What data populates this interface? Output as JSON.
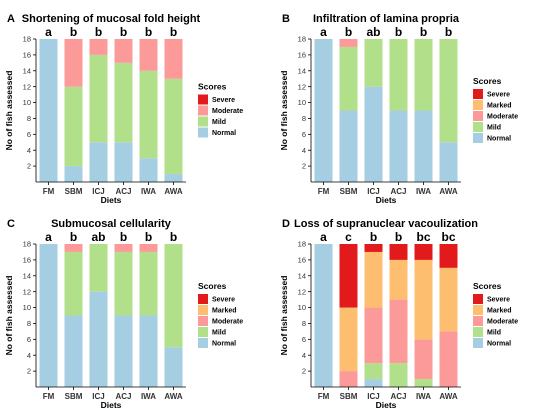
{
  "colors": {
    "Normal": "#a6cee3",
    "Mild": "#b2df8a",
    "Moderate": "#fb9a99",
    "Marked": "#fdbf6f",
    "Severe": "#e31a1c"
  },
  "chart_data": [
    {
      "type": "bar",
      "stacked": true,
      "letter": "A",
      "title": "Shortening of mucosal fold height",
      "xlabel": "Diets",
      "ylabel": "No of fish assessed",
      "ylim": [
        0,
        18
      ],
      "yticks": [
        2,
        4,
        6,
        8,
        10,
        12,
        14,
        16,
        18
      ],
      "categories": [
        "FM",
        "SBM",
        "ICJ",
        "ACJ",
        "IWA",
        "AWA"
      ],
      "significance": [
        "a",
        "b",
        "b",
        "b",
        "b",
        "b"
      ],
      "legend_title": "Scores",
      "legend": [
        "Severe",
        "Moderate",
        "Mild",
        "Normal"
      ],
      "series": [
        {
          "name": "Normal",
          "values": [
            18,
            2,
            5,
            5,
            3,
            1
          ]
        },
        {
          "name": "Mild",
          "values": [
            0,
            10,
            11,
            10,
            11,
            12
          ]
        },
        {
          "name": "Moderate",
          "values": [
            0,
            6,
            2,
            3,
            4,
            5
          ]
        },
        {
          "name": "Severe",
          "values": [
            0,
            0,
            0,
            0,
            0,
            0
          ]
        }
      ]
    },
    {
      "type": "bar",
      "stacked": true,
      "letter": "B",
      "title": "Infiltration of lamina propria",
      "xlabel": "Diets",
      "ylabel": "No of fish assessed",
      "ylim": [
        0,
        18
      ],
      "yticks": [
        2,
        4,
        6,
        8,
        10,
        12,
        14,
        16,
        18
      ],
      "categories": [
        "FM",
        "SBM",
        "ICJ",
        "ACJ",
        "IWA",
        "AWA"
      ],
      "significance": [
        "a",
        "b",
        "ab",
        "b",
        "b",
        "b"
      ],
      "legend_title": "Scores",
      "legend": [
        "Severe",
        "Marked",
        "Moderate",
        "Mild",
        "Normal"
      ],
      "series": [
        {
          "name": "Normal",
          "values": [
            18,
            9,
            12,
            9,
            9,
            5
          ]
        },
        {
          "name": "Mild",
          "values": [
            0,
            8,
            6,
            9,
            9,
            13
          ]
        },
        {
          "name": "Moderate",
          "values": [
            0,
            1,
            0,
            0,
            0,
            0
          ]
        },
        {
          "name": "Marked",
          "values": [
            0,
            0,
            0,
            0,
            0,
            0
          ]
        },
        {
          "name": "Severe",
          "values": [
            0,
            0,
            0,
            0,
            0,
            0
          ]
        }
      ]
    },
    {
      "type": "bar",
      "stacked": true,
      "letter": "C",
      "title": "Submucosal cellularity",
      "xlabel": "Diets",
      "ylabel": "No of fish assessed",
      "ylim": [
        0,
        18
      ],
      "yticks": [
        2,
        4,
        6,
        8,
        10,
        12,
        14,
        16,
        18
      ],
      "categories": [
        "FM",
        "SBM",
        "ICJ",
        "ACJ",
        "IWA",
        "AWA"
      ],
      "significance": [
        "a",
        "b",
        "ab",
        "b",
        "b",
        "b"
      ],
      "legend_title": "Scores",
      "legend": [
        "Severe",
        "Marked",
        "Moderate",
        "Mild",
        "Normal"
      ],
      "series": [
        {
          "name": "Normal",
          "values": [
            18,
            9,
            12,
            9,
            9,
            5
          ]
        },
        {
          "name": "Mild",
          "values": [
            0,
            8,
            6,
            8,
            8,
            13
          ]
        },
        {
          "name": "Moderate",
          "values": [
            0,
            1,
            0,
            1,
            1,
            0
          ]
        },
        {
          "name": "Marked",
          "values": [
            0,
            0,
            0,
            0,
            0,
            0
          ]
        },
        {
          "name": "Severe",
          "values": [
            0,
            0,
            0,
            0,
            0,
            0
          ]
        }
      ]
    },
    {
      "type": "bar",
      "stacked": true,
      "letter": "D",
      "title": "Loss of supranuclear vacoulization",
      "xlabel": "Diets",
      "ylabel": "No of fish assessed",
      "ylim": [
        0,
        18
      ],
      "yticks": [
        2,
        4,
        6,
        8,
        10,
        12,
        14,
        16,
        18
      ],
      "categories": [
        "FM",
        "SBM",
        "ICJ",
        "ACJ",
        "IWA",
        "AWA"
      ],
      "significance": [
        "a",
        "c",
        "b",
        "b",
        "bc",
        "bc"
      ],
      "legend_title": "Scores",
      "legend": [
        "Severe",
        "Marked",
        "Moderate",
        "Mild",
        "Normal"
      ],
      "series": [
        {
          "name": "Normal",
          "values": [
            18,
            0,
            1,
            0,
            0,
            0
          ]
        },
        {
          "name": "Mild",
          "values": [
            0,
            0,
            2,
            3,
            1,
            0
          ]
        },
        {
          "name": "Moderate",
          "values": [
            0,
            2,
            7,
            8,
            5,
            7
          ]
        },
        {
          "name": "Marked",
          "values": [
            0,
            8,
            7,
            5,
            10,
            8
          ]
        },
        {
          "name": "Severe",
          "values": [
            0,
            8,
            1,
            2,
            2,
            3
          ]
        }
      ]
    }
  ]
}
